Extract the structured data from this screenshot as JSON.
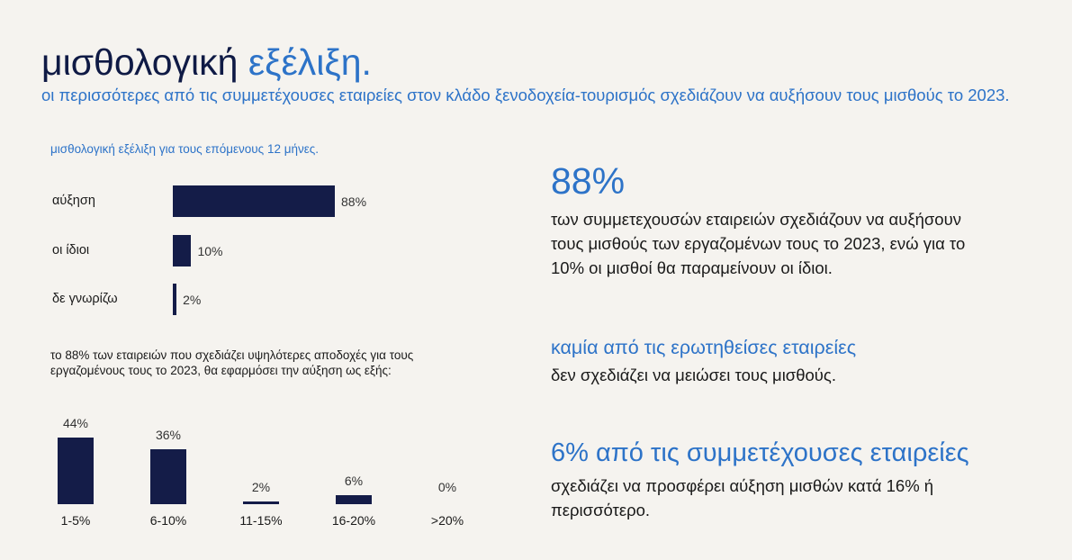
{
  "title": {
    "main": "μισθολογική",
    "accent": "εξέλιξη."
  },
  "subtitle": "οι περισσότερες από τις συμμετέχουσες εταιρείες στον κλάδο ξενοδοχεία-τουρισμός σχεδιάζουν να αυξήσουν τους μισθούς το 2023.",
  "colors": {
    "bar": "#141c48",
    "accent": "#2d73c8",
    "title": "#0f1a45"
  },
  "chart_data": [
    {
      "type": "bar",
      "orientation": "horizontal",
      "title": "μισθολογική εξέλιξη για τους επόμενους 12 μήνες.",
      "categories": [
        "αύξηση",
        "οι ίδιοι",
        "δε γνωρίζω"
      ],
      "values": [
        88,
        10,
        2
      ],
      "value_labels": [
        "88%",
        "10%",
        "2%"
      ],
      "xlim": [
        0,
        100
      ],
      "grid": false
    },
    {
      "type": "bar",
      "orientation": "vertical",
      "title": "το 88% των εταιρειών που σχεδιάζει υψηλότερες αποδοχές για τους εργαζομένους τους το 2023, θα εφαρμόσει την αύξηση ως εξής:",
      "categories": [
        "1-5%",
        "6-10%",
        "11-15%",
        "16-20%",
        ">20%"
      ],
      "values": [
        44,
        36,
        2,
        6,
        0
      ],
      "value_labels": [
        "44%",
        "36%",
        "2%",
        "6%",
        "0%"
      ],
      "ylim": [
        0,
        44
      ],
      "grid": false
    }
  ],
  "stats": {
    "big_value": "88%",
    "big_text": "των συμμετεχουσών εταιρειών σχεδιάζουν να αυξήσουν τους μισθούς των εργαζομένων τους το 2023, ενώ για το 10% οι μισθοί θα παραμείνουν οι ίδιοι.",
    "head2": "καμία από τις ερωτηθείσες εταιρείες",
    "text2": "δεν σχεδιάζει να μειώσει τους μισθούς.",
    "head3": "6% από τις συμμετέχουσες εταιρείες",
    "text3": "σχεδιάζει να προσφέρει αύξηση μισθών κατά 16% ή περισσότερο."
  }
}
